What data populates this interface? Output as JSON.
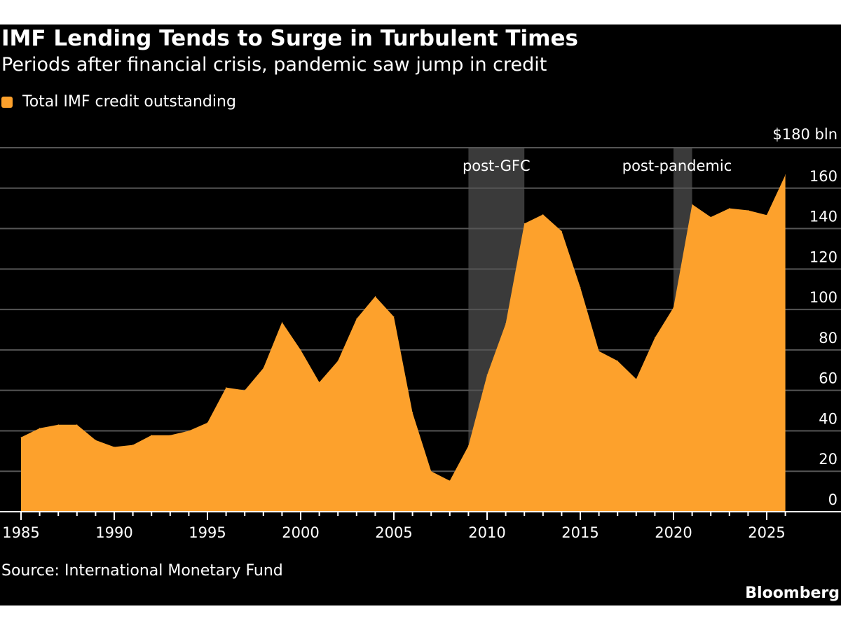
{
  "header": {
    "title": "IMF Lending Tends to Surge in Turbulent Times",
    "subtitle": "Periods after financial crisis, pandemic saw jump in credit"
  },
  "footer": {
    "source": "Source: International Monetary Fund",
    "brand": "Bloomberg"
  },
  "colors": {
    "area": "#fda12c",
    "shade": "#3a3a3a",
    "grid": "#555555"
  },
  "chart_data": {
    "type": "area",
    "title": "IMF Lending Tends to Surge in Turbulent Times",
    "legend": [
      "Total IMF credit outstanding"
    ],
    "legend_position": "top-left",
    "ylabel": "$180 bln",
    "ylim": [
      0,
      180
    ],
    "yticks": [
      0,
      20,
      40,
      60,
      80,
      100,
      120,
      140,
      160
    ],
    "ytick_top_label": "$180 bln",
    "xlim": [
      1985,
      2029
    ],
    "xticks": [
      1985,
      1990,
      1995,
      2000,
      2005,
      2010,
      2015,
      2020,
      2025
    ],
    "x": [
      1985,
      1986,
      1987,
      1988,
      1989,
      1990,
      1991,
      1992,
      1993,
      1994,
      1995,
      1996,
      1997,
      1998,
      1999,
      2000,
      2001,
      2002,
      2003,
      2004,
      2005,
      2006,
      2007,
      2008,
      2009,
      2010,
      2011,
      2012,
      2013,
      2014,
      2015,
      2016,
      2017,
      2018,
      2019,
      2020,
      2021,
      2022,
      2023,
      2024,
      2025,
      2026
    ],
    "series": [
      {
        "name": "Total IMF credit outstanding",
        "values": [
          36.8,
          41.3,
          43,
          43,
          35.4,
          32,
          33,
          37.8,
          37.8,
          40,
          44,
          61.4,
          60,
          71,
          93.7,
          80,
          64,
          74.6,
          95.4,
          106.5,
          96.4,
          49,
          20,
          15.3,
          32.6,
          67.6,
          93,
          142.5,
          147,
          138.7,
          111,
          79.4,
          74.6,
          65.6,
          86,
          101,
          152,
          145.7,
          150,
          149,
          146.7,
          166.5
        ]
      }
    ],
    "annotations": [
      {
        "label": "post-GFC",
        "x_start": 2009,
        "x_end": 2012
      },
      {
        "label": "post-pandemic",
        "x_start": 2020,
        "x_end": 2021
      }
    ],
    "grid": true
  }
}
